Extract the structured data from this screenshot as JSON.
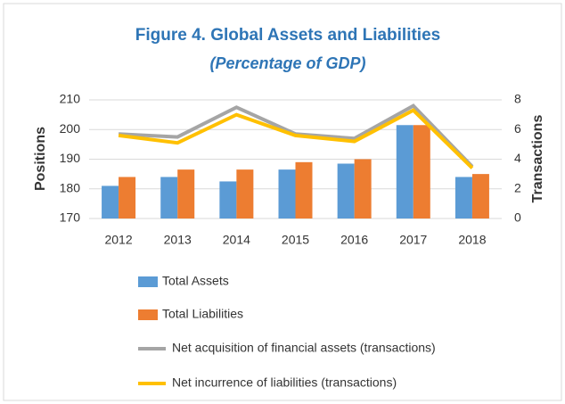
{
  "chart_data": {
    "type": "bar_line",
    "title": "Figure 4. Global Assets and Liabilities",
    "subtitle": "(Percentage of GDP)",
    "y_label": "Positions",
    "y2_label": "Transactions",
    "categories": [
      "2012",
      "2013",
      "2014",
      "2015",
      "2016",
      "2017",
      "2018"
    ],
    "ylim": [
      170,
      210
    ],
    "yticks": [
      170,
      180,
      190,
      200,
      210
    ],
    "y2lim": [
      0,
      8
    ],
    "y2ticks": [
      0,
      2,
      4,
      6,
      8
    ],
    "grid": true,
    "series": [
      {
        "name": "Total Assets",
        "kind": "bar",
        "color": "#5b9bd5",
        "values": [
          181,
          184,
          182.5,
          186.5,
          188.5,
          201.5,
          184
        ]
      },
      {
        "name": "Total Liabilities",
        "kind": "bar",
        "color": "#ed7d31",
        "values": [
          184,
          186.5,
          186.5,
          189,
          190,
          201.5,
          185
        ]
      },
      {
        "name": "Net acquisition of financial assets (transactions)",
        "kind": "line",
        "axis": "y2",
        "color": "#a5a5a5",
        "values": [
          5.7,
          5.5,
          7.5,
          5.7,
          5.4,
          7.6,
          3.5
        ]
      },
      {
        "name": "Net incurrence of liabilities (transactions)",
        "kind": "line",
        "axis": "y2",
        "color": "#ffc000",
        "values": [
          5.6,
          5.1,
          7.0,
          5.6,
          5.2,
          7.3,
          3.4
        ]
      }
    ]
  }
}
